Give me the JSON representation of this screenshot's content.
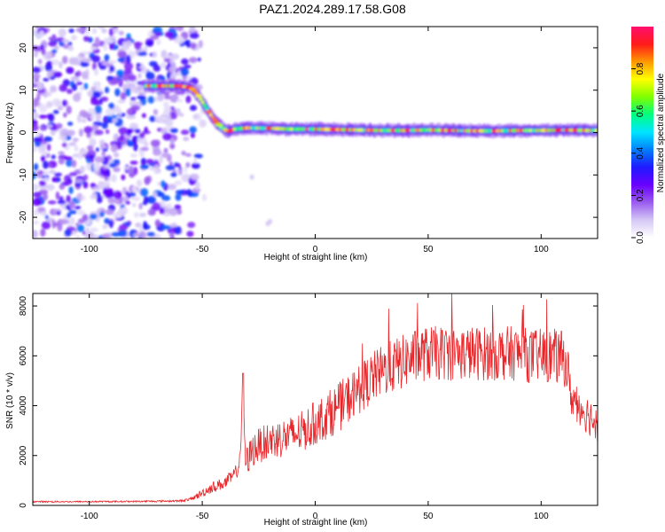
{
  "figure_title": "PAZ1.2024.289.17.58.G08",
  "colors": {
    "snr_line": "#e8262a",
    "cmap": [
      "#ffffff",
      "#d5c8f5",
      "#9a5cf0",
      "#6a00ff",
      "#1f1aff",
      "#0080ff",
      "#00e5ff",
      "#00ff7f",
      "#7fff00",
      "#ffff00",
      "#ff9900",
      "#ff1a1a",
      "#ff0f6e"
    ]
  },
  "chart_data": [
    {
      "type": "heatmap",
      "title": "",
      "xlabel": "Height of straight line (km)",
      "ylabel": "Frequency (Hz)",
      "xlim": [
        -125,
        125
      ],
      "ylim": [
        -25,
        25
      ],
      "xticks": [
        -100,
        -50,
        0,
        50,
        100
      ],
      "yticks": [
        -20,
        -10,
        0,
        10,
        20
      ],
      "trace": {
        "x": [
          -75,
          -70,
          -60,
          -55,
          -52,
          -49,
          -46,
          -43,
          -40,
          -38,
          -36,
          -30,
          -20,
          -10,
          0,
          10,
          20,
          30,
          40,
          50,
          60,
          70,
          80,
          90,
          100,
          110,
          120,
          125
        ],
        "y": [
          11,
          11,
          11,
          10.6,
          9,
          6.5,
          4,
          2,
          0.6,
          0.3,
          0.8,
          1.1,
          1.0,
          0.8,
          0.8,
          0.7,
          0.6,
          0.5,
          0.5,
          0.6,
          0.5,
          0.4,
          0.4,
          0.5,
          0.5,
          0.6,
          0.5,
          0.5
        ],
        "amplitude_range": [
          0.5,
          1.0
        ]
      },
      "noise_region": {
        "x_range": [
          -125,
          -55
        ],
        "y_range": [
          -25,
          25
        ],
        "amplitude_range": [
          0.05,
          0.35
        ]
      },
      "colorbar": {
        "label": "Normalized spectral amplitude",
        "ticks": [
          "0.0",
          "0.2",
          "0.4",
          "0.6",
          "0.8"
        ],
        "range": [
          0,
          1
        ]
      }
    },
    {
      "type": "line",
      "title": "",
      "xlabel": "Height of straight line (km)",
      "ylabel": "SNR (10 * v/v)",
      "xlim": [
        -125,
        125
      ],
      "ylim": [
        0,
        8500
      ],
      "xticks": [
        -100,
        -50,
        0,
        50,
        100
      ],
      "yticks": [
        0,
        2000,
        4000,
        6000,
        8000
      ],
      "series": [
        {
          "x": [
            -125,
            -100,
            -80,
            -60,
            -55,
            -50,
            -45,
            -40,
            -36,
            -34,
            -33,
            -32,
            -31,
            -30,
            -28,
            -25,
            -20,
            -15,
            -10,
            -5,
            0,
            5,
            10,
            15,
            20,
            25,
            30,
            35,
            40,
            45,
            50,
            55,
            60,
            65,
            70,
            75,
            80,
            85,
            90,
            95,
            100,
            105,
            110,
            112,
            113,
            115,
            120,
            125
          ],
          "y": [
            150,
            150,
            160,
            180,
            250,
            500,
            750,
            900,
            1200,
            1500,
            2300,
            5300,
            1800,
            1800,
            2200,
            2400,
            2600,
            2700,
            2800,
            3000,
            3300,
            3600,
            3900,
            4300,
            4700,
            5100,
            5400,
            5600,
            5800,
            6000,
            6100,
            6100,
            6100,
            6100,
            6100,
            6100,
            6100,
            6100,
            6100,
            6000,
            6000,
            6000,
            5900,
            5400,
            4400,
            4200,
            3700,
            3300
          ],
          "noise_amplitude": [
            30,
            30,
            30,
            40,
            60,
            180,
            220,
            250,
            300,
            300,
            400,
            0,
            500,
            600,
            700,
            700,
            750,
            800,
            800,
            850,
            900,
            950,
            1000,
            1000,
            1000,
            1050,
            1050,
            1100,
            1100,
            1100,
            1100,
            1100,
            1100,
            1100,
            1100,
            1100,
            1100,
            1100,
            1100,
            1100,
            1100,
            1100,
            1100,
            900,
            800,
            800,
            800,
            800
          ]
        }
      ]
    }
  ]
}
